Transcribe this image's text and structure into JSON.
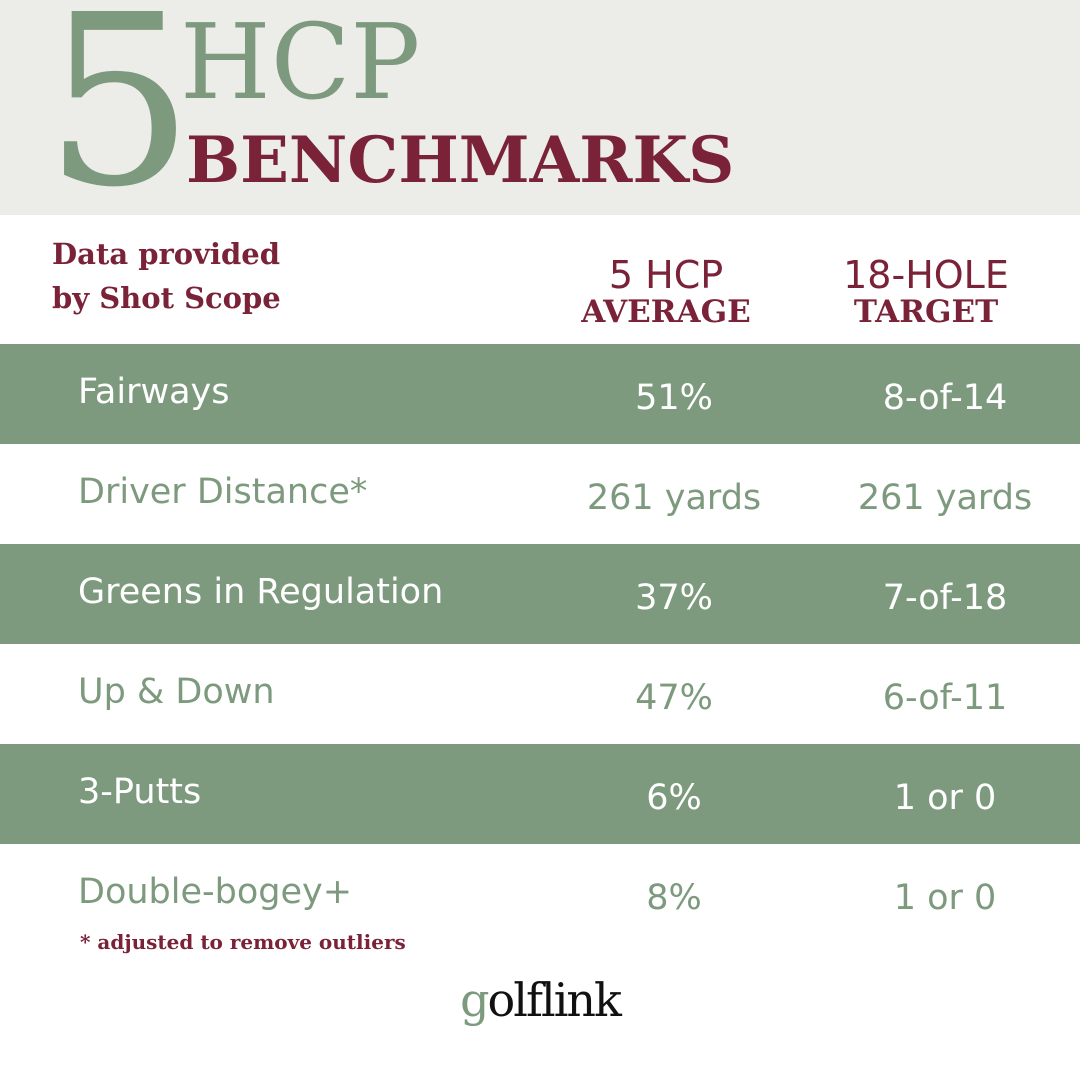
{
  "header": {
    "number": "5",
    "hcp": "HCP",
    "benchmarks": "BENCHMARKS"
  },
  "provided": {
    "line1": "Data provided",
    "line2": "by Shot Scope"
  },
  "columns": {
    "average": {
      "line1": "5 HCP",
      "line2": "AVERAGE"
    },
    "target": {
      "line1": "18-HOLE",
      "line2": "TARGET"
    }
  },
  "rows": [
    {
      "label": "Fairways",
      "average": "51%",
      "target": "8-of-14"
    },
    {
      "label": "Driver Distance*",
      "average": "261 yards",
      "target": "261 yards"
    },
    {
      "label": "Greens in Regulation",
      "average": "37%",
      "target": "7-of-18"
    },
    {
      "label": "Up & Down",
      "average": "47%",
      "target": "6-of-11"
    },
    {
      "label": "3-Putts",
      "average": "6%",
      "target": "1 or 0"
    },
    {
      "label": "Double-bogey+",
      "average": "8%",
      "target": "1 or 0"
    }
  ],
  "footnote": "* adjusted to remove outliers",
  "logo": {
    "first": "g",
    "rest": "olflink"
  },
  "colors": {
    "sage": "#7d9a7e",
    "maroon": "#7a2238",
    "header_bg": "#ecece8"
  }
}
